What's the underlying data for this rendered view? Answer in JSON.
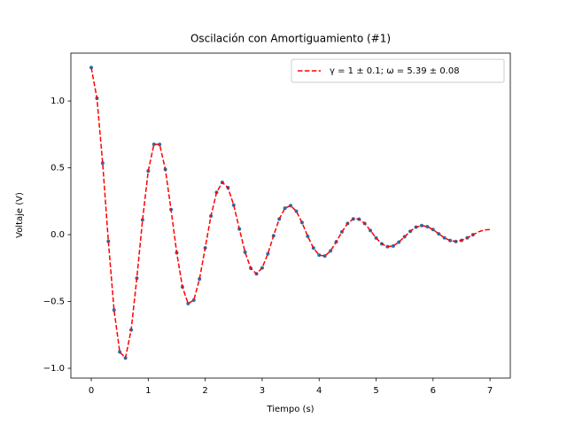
{
  "chart_data": {
    "type": "line",
    "title": "Oscilación con Amortiguamiento (#1)",
    "xlabel": "Tiempo (s)",
    "ylabel": "Voltaje (V)",
    "xlim": [
      -0.358,
      7.356
    ],
    "ylim": [
      -1.073,
      1.358
    ],
    "xticks": [
      0,
      1,
      2,
      3,
      4,
      5,
      6,
      7
    ],
    "yticks": [
      {
        "value": -1,
        "label": "−1.0"
      },
      {
        "value": -0.5,
        "label": "−0.5"
      },
      {
        "value": 0,
        "label": "0.0"
      },
      {
        "value": 0.5,
        "label": "0.5"
      },
      {
        "value": 1,
        "label": "1.0"
      }
    ],
    "grid": false,
    "legend": "upper right",
    "series": [
      {
        "type": "scatter",
        "color": "#1f77b4",
        "x": [
          0,
          0.1,
          0.2,
          0.3,
          0.4,
          0.5,
          0.6,
          0.7,
          0.8,
          0.9,
          1.0,
          1.1,
          1.2,
          1.3,
          1.4,
          1.5,
          1.6,
          1.7,
          1.8,
          1.9,
          2.0,
          2.1,
          2.2,
          2.3,
          2.4,
          2.5,
          2.6,
          2.7,
          2.8,
          2.9,
          3.0,
          3.1,
          3.2,
          3.3,
          3.4,
          3.5,
          3.6,
          3.7,
          3.8,
          3.9,
          4.0,
          4.1,
          4.2,
          4.3,
          4.4,
          4.5,
          4.6,
          4.7,
          4.8,
          4.9,
          5.0,
          5.1,
          5.2,
          5.3,
          5.4,
          5.5,
          5.6,
          5.7,
          5.8,
          5.9,
          6.0,
          6.1,
          6.2,
          6.3,
          6.4,
          6.5,
          6.6,
          6.7
        ],
        "values": [
          1.25,
          1.02,
          0.535,
          -0.05,
          -0.564,
          -0.878,
          -0.923,
          -0.713,
          -0.325,
          0.11,
          0.476,
          0.676,
          0.675,
          0.489,
          0.188,
          -0.135,
          -0.391,
          -0.516,
          -0.49,
          -0.332,
          -0.099,
          0.139,
          0.316,
          0.391,
          0.351,
          0.221,
          0.042,
          -0.131,
          -0.252,
          -0.293,
          -0.249,
          -0.143,
          -0.008,
          0.117,
          0.198,
          0.217,
          0.175,
          0.09,
          -0.012,
          -0.1,
          -0.153,
          -0.16,
          -0.122,
          -0.054,
          0.021,
          0.084,
          0.118,
          0.116,
          0.084,
          0.031,
          -0.025,
          -0.069,
          -0.09,
          -0.085,
          -0.056,
          -0.016,
          0.025,
          0.056,
          0.068,
          0.06,
          0.038,
          0.006,
          -0.024,
          -0.044,
          -0.051,
          -0.043,
          -0.024,
          -0.001
        ]
      },
      {
        "type": "line",
        "name": "γ = 1 ± 0.1; ω = 5.39 ± 0.08",
        "color": "#ff0000",
        "dashed": true,
        "x": [
          0,
          0.1,
          0.2,
          0.3,
          0.4,
          0.5,
          0.6,
          0.7,
          0.8,
          0.9,
          1.0,
          1.1,
          1.2,
          1.3,
          1.4,
          1.5,
          1.6,
          1.7,
          1.8,
          1.9,
          2.0,
          2.1,
          2.2,
          2.3,
          2.4,
          2.5,
          2.6,
          2.7,
          2.8,
          2.9,
          3.0,
          3.1,
          3.2,
          3.3,
          3.4,
          3.5,
          3.6,
          3.7,
          3.8,
          3.9,
          4.0,
          4.1,
          4.2,
          4.3,
          4.4,
          4.5,
          4.6,
          4.7,
          4.8,
          4.9,
          5.0,
          5.1,
          5.2,
          5.3,
          5.4,
          5.5,
          5.6,
          5.7,
          5.8,
          5.9,
          6.0,
          6.1,
          6.2,
          6.3,
          6.4,
          6.5,
          6.6,
          6.7,
          6.8,
          6.9,
          7.0
        ],
        "values": [
          1.25,
          1.02,
          0.535,
          -0.05,
          -0.564,
          -0.878,
          -0.923,
          -0.713,
          -0.325,
          0.11,
          0.476,
          0.676,
          0.675,
          0.489,
          0.188,
          -0.135,
          -0.391,
          -0.516,
          -0.49,
          -0.332,
          -0.099,
          0.139,
          0.316,
          0.391,
          0.351,
          0.221,
          0.042,
          -0.131,
          -0.252,
          -0.293,
          -0.249,
          -0.143,
          -0.008,
          0.117,
          0.198,
          0.217,
          0.175,
          0.09,
          -0.012,
          -0.1,
          -0.153,
          -0.16,
          -0.122,
          -0.054,
          0.021,
          0.084,
          0.118,
          0.116,
          0.084,
          0.031,
          -0.025,
          -0.069,
          -0.09,
          -0.085,
          -0.056,
          -0.016,
          0.025,
          0.056,
          0.068,
          0.06,
          0.038,
          0.006,
          -0.024,
          -0.044,
          -0.051,
          -0.043,
          -0.024,
          -0.001,
          0.021,
          0.035,
          0.038
        ]
      }
    ]
  }
}
